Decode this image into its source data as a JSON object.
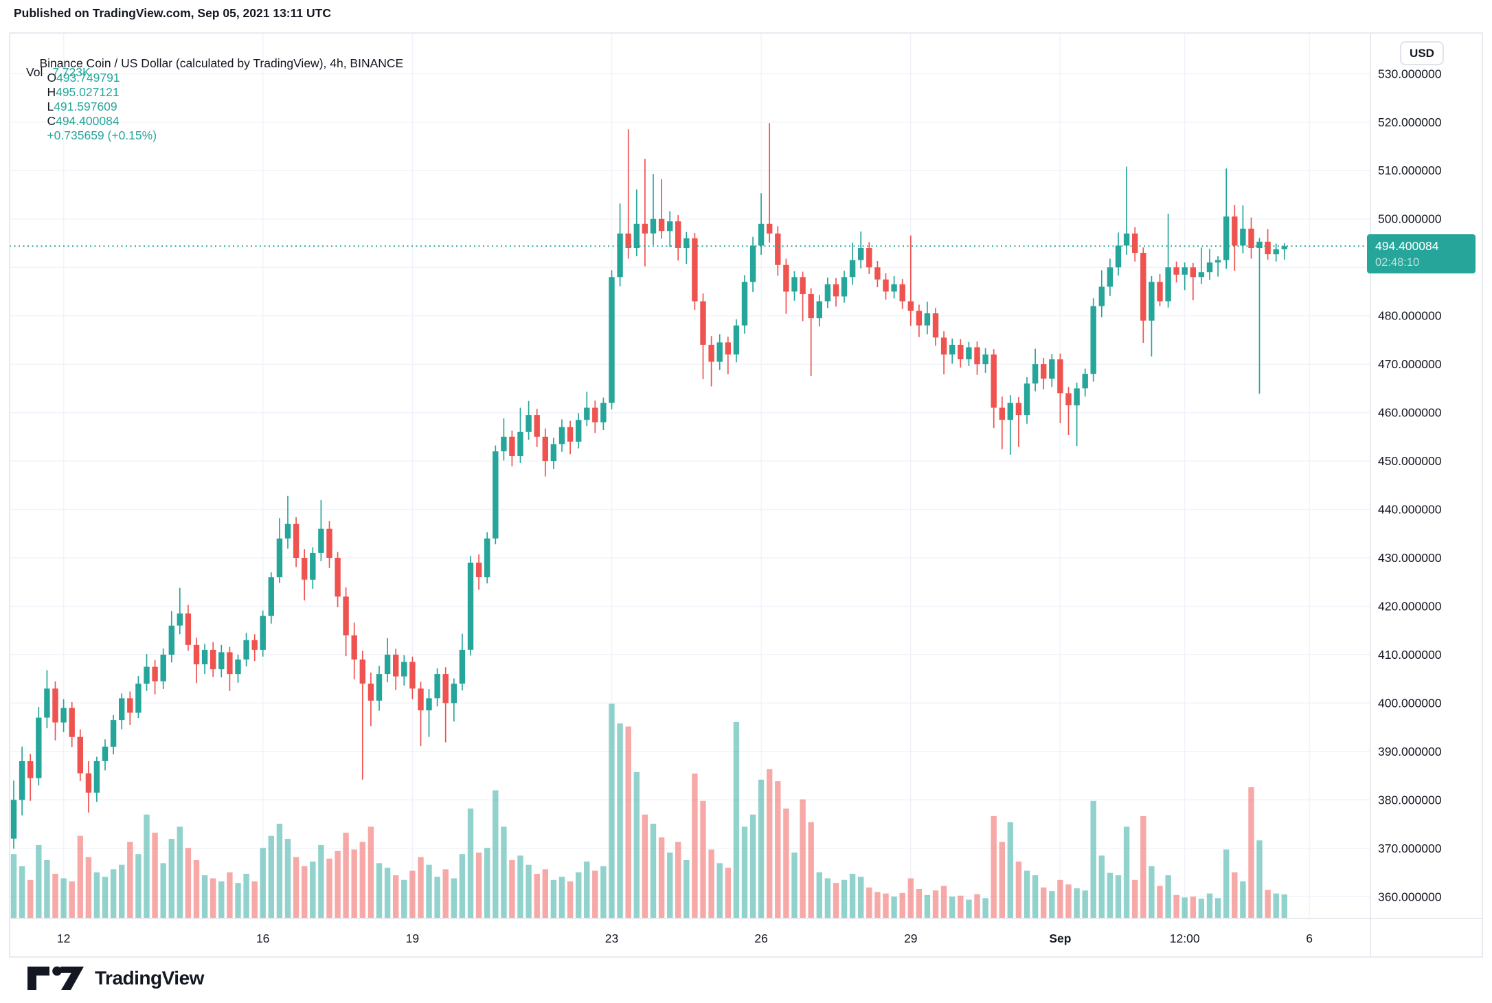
{
  "published_line": "Published on TradingView.com, Sep 05, 2021 13:11 UTC",
  "header": {
    "symbol_line": "Binance Coin / US Dollar (calculated by TradingView), 4h, BINANCE",
    "open_label": "O",
    "open": "493.749791",
    "high_label": "H",
    "high": "495.027121",
    "low_label": "L",
    "low": "491.597609",
    "close_label": "C",
    "close": "494.400084",
    "change": "+0.735659 (+0.15%)",
    "volume_label": "Vol",
    "volume": "7.723K"
  },
  "price_axis": {
    "currency_badge": "USD",
    "last_price_label": "494.400084",
    "countdown": "02:48:10"
  },
  "footer": {
    "brand": "TradingView"
  },
  "colors": {
    "up": "#26a69a",
    "down": "#ef5350",
    "vol_up": "rgba(38,166,154,0.5)",
    "vol_down": "rgba(239,83,80,0.5)",
    "accent": "#26a69a",
    "text": "#131722",
    "grid": "#f0f3fa",
    "frame": "#e0e3eb"
  },
  "chart_data": {
    "type": "candlestick",
    "title": "Binance Coin / US Dollar (calculated by TradingView), 4h, BINANCE",
    "symbol": "Binance Coin / US Dollar",
    "exchange": "BINANCE",
    "interval": "4h",
    "start_time": "2021-08-11 00:00 UTC",
    "end_time": "2021-09-05 12:00 UTC (current bar, closes in 02:48:10)",
    "price_line": 494.400084,
    "volume_series_name": "Vol",
    "legend_position": "top-left",
    "grid": true,
    "y_axis": {
      "ticks": [
        530,
        520,
        510,
        500,
        490,
        480,
        470,
        460,
        450,
        440,
        430,
        420,
        410,
        400,
        390,
        380,
        370,
        360
      ],
      "label_decimals": 6,
      "ylim": [
        355.5,
        538.5
      ]
    },
    "x_ticks": [
      {
        "index": 6,
        "label": "12"
      },
      {
        "index": 30,
        "label": "16"
      },
      {
        "index": 48,
        "label": "19"
      },
      {
        "index": 72,
        "label": "23"
      },
      {
        "index": 90,
        "label": "26"
      },
      {
        "index": 108,
        "label": "29"
      },
      {
        "index": 126,
        "label": "Sep",
        "bold": true
      },
      {
        "index": 141,
        "label": "12:00"
      },
      {
        "index": 156,
        "label": "6"
      }
    ],
    "candles_format": [
      "open",
      "high",
      "low",
      "close",
      "volume_K"
    ],
    "candles": [
      [
        372.0,
        384.0,
        369.9,
        380.0,
        21
      ],
      [
        380.0,
        391.0,
        376.8,
        388.0,
        17
      ],
      [
        388.0,
        389.5,
        379.8,
        384.5,
        12.5
      ],
      [
        384.5,
        399.2,
        383.0,
        397.0,
        24
      ],
      [
        397.0,
        406.8,
        394.8,
        403.0,
        19
      ],
      [
        403.0,
        404.5,
        392.3,
        396.0,
        14.5
      ],
      [
        396.0,
        400.8,
        394.0,
        399.0,
        13
      ],
      [
        399.0,
        400.2,
        390.9,
        393.0,
        12
      ],
      [
        393.0,
        394.6,
        383.9,
        385.5,
        27
      ],
      [
        385.5,
        388.0,
        377.4,
        381.5,
        20
      ],
      [
        381.5,
        388.9,
        379.6,
        388.0,
        15
      ],
      [
        388.0,
        392.5,
        386.1,
        391.0,
        13.5
      ],
      [
        391.0,
        397.5,
        389.4,
        396.5,
        16
      ],
      [
        396.5,
        402.0,
        394.6,
        401.0,
        17.5
      ],
      [
        401.0,
        402.4,
        395.5,
        398.0,
        25
      ],
      [
        398.0,
        405.6,
        396.9,
        404.0,
        21
      ],
      [
        404.0,
        410.1,
        402.5,
        407.5,
        34
      ],
      [
        407.5,
        408.9,
        401.8,
        404.5,
        28
      ],
      [
        404.5,
        411.3,
        402.9,
        410.0,
        18
      ],
      [
        410.0,
        419.0,
        408.4,
        416.0,
        26
      ],
      [
        416.0,
        423.8,
        414.2,
        418.5,
        30
      ],
      [
        418.5,
        420.3,
        410.8,
        412.0,
        23
      ],
      [
        412.0,
        413.5,
        404.1,
        408.0,
        19
      ],
      [
        408.0,
        412.2,
        406.0,
        411.0,
        14
      ],
      [
        411.0,
        412.6,
        405.4,
        407.0,
        13
      ],
      [
        407.0,
        412.0,
        405.3,
        410.5,
        12
      ],
      [
        410.5,
        411.6,
        402.5,
        406.0,
        15
      ],
      [
        406.0,
        410.0,
        404.2,
        409.0,
        11.5
      ],
      [
        409.0,
        414.5,
        407.6,
        413.0,
        14.5
      ],
      [
        413.0,
        414.2,
        408.7,
        411.0,
        12
      ],
      [
        411.0,
        419.1,
        409.6,
        418.0,
        23
      ],
      [
        418.0,
        427.0,
        416.4,
        426.0,
        27
      ],
      [
        426.0,
        438.2,
        424.8,
        434.0,
        31
      ],
      [
        434.0,
        442.8,
        431.9,
        437.0,
        26
      ],
      [
        437.0,
        438.4,
        428.1,
        430.0,
        20
      ],
      [
        430.0,
        431.8,
        421.2,
        425.5,
        17
      ],
      [
        425.5,
        432.2,
        423.6,
        431.0,
        18.5
      ],
      [
        431.0,
        441.9,
        429.3,
        436.0,
        24
      ],
      [
        436.0,
        437.6,
        427.9,
        430.0,
        19.5
      ],
      [
        430.0,
        431.2,
        419.8,
        422.0,
        22
      ],
      [
        422.0,
        423.9,
        409.7,
        414.0,
        28
      ],
      [
        414.0,
        416.6,
        404.9,
        409.0,
        22.5
      ],
      [
        409.0,
        410.8,
        384.2,
        404.0,
        25
      ],
      [
        404.0,
        406.3,
        395.2,
        400.5,
        30
      ],
      [
        400.5,
        407.7,
        398.4,
        406.0,
        18
      ],
      [
        406.0,
        413.4,
        404.3,
        410.0,
        16.5
      ],
      [
        410.0,
        411.2,
        402.7,
        405.5,
        14
      ],
      [
        405.5,
        409.9,
        403.6,
        408.5,
        12.5
      ],
      [
        408.5,
        409.6,
        400.8,
        403.0,
        15.5
      ],
      [
        403.0,
        404.4,
        391.1,
        398.5,
        20
      ],
      [
        398.5,
        402.9,
        393.0,
        401.0,
        17.5
      ],
      [
        401.0,
        407.2,
        399.3,
        406.0,
        13.5
      ],
      [
        406.0,
        407.4,
        391.9,
        400.0,
        16
      ],
      [
        400.0,
        405.1,
        396.2,
        404.0,
        13
      ],
      [
        404.0,
        414.3,
        402.6,
        411.0,
        21
      ],
      [
        411.0,
        430.4,
        409.8,
        429.0,
        36
      ],
      [
        429.0,
        430.7,
        423.4,
        426.0,
        21.5
      ],
      [
        426.0,
        435.3,
        424.7,
        434.0,
        23
      ],
      [
        434.0,
        453.2,
        432.8,
        452.0,
        42
      ],
      [
        452.0,
        458.8,
        450.1,
        455.0,
        30
      ],
      [
        455.0,
        456.3,
        448.9,
        451.0,
        19
      ],
      [
        451.0,
        461.0,
        449.6,
        456.0,
        20.5
      ],
      [
        456.0,
        462.4,
        454.4,
        459.5,
        17.5
      ],
      [
        459.5,
        460.8,
        452.9,
        455.0,
        14.5
      ],
      [
        455.0,
        456.7,
        446.8,
        450.0,
        16
      ],
      [
        450.0,
        454.8,
        448.3,
        453.5,
        12.5
      ],
      [
        453.5,
        458.6,
        451.9,
        457.0,
        13.5
      ],
      [
        457.0,
        458.3,
        451.4,
        454.0,
        12
      ],
      [
        454.0,
        459.9,
        452.6,
        458.5,
        15
      ],
      [
        458.5,
        464.3,
        457.2,
        461.0,
        18.5
      ],
      [
        461.0,
        462.5,
        455.8,
        458.0,
        15.5
      ],
      [
        458.0,
        463.1,
        456.4,
        462.0,
        17
      ],
      [
        462.0,
        489.4,
        460.7,
        488.0,
        70.5
      ],
      [
        488.0,
        503.2,
        486.1,
        497.0,
        64
      ],
      [
        497.0,
        518.5,
        491.8,
        494.0,
        63
      ],
      [
        494.0,
        506.1,
        492.3,
        499.0,
        48
      ],
      [
        499.0,
        512.4,
        490.2,
        497.0,
        34
      ],
      [
        497.0,
        509.3,
        494.6,
        500.0,
        31
      ],
      [
        500.0,
        508.2,
        495.9,
        497.5,
        26.5
      ],
      [
        497.5,
        501.6,
        494.2,
        499.5,
        21.5
      ],
      [
        499.5,
        500.8,
        491.4,
        494.0,
        25
      ],
      [
        494.0,
        497.3,
        490.7,
        496.0,
        19
      ],
      [
        496.0,
        497.1,
        481.2,
        483.0,
        47.5
      ],
      [
        483.0,
        484.6,
        466.9,
        474.0,
        38.5
      ],
      [
        474.0,
        475.8,
        465.4,
        470.5,
        22.5
      ],
      [
        470.5,
        476.2,
        468.8,
        474.5,
        18
      ],
      [
        474.5,
        475.7,
        467.9,
        472.0,
        16.5
      ],
      [
        472.0,
        479.3,
        470.4,
        478.0,
        64.5
      ],
      [
        478.0,
        488.4,
        476.3,
        487.0,
        30
      ],
      [
        487.0,
        496.3,
        484.9,
        494.5,
        34
      ],
      [
        494.5,
        505.3,
        492.6,
        499.0,
        45.5
      ],
      [
        499.0,
        519.8,
        495.1,
        497.0,
        49
      ],
      [
        497.0,
        498.5,
        488.3,
        490.5,
        45
      ],
      [
        490.5,
        491.8,
        480.4,
        485.0,
        36
      ],
      [
        485.0,
        489.2,
        483.1,
        488.0,
        21.5
      ],
      [
        488.0,
        489.1,
        478.9,
        484.5,
        39
      ],
      [
        484.5,
        485.7,
        467.6,
        479.5,
        31.5
      ],
      [
        479.5,
        484.3,
        477.8,
        483.0,
        15
      ],
      [
        483.0,
        487.9,
        481.6,
        486.5,
        13
      ],
      [
        486.5,
        487.8,
        481.9,
        484.0,
        11.5
      ],
      [
        484.0,
        489.3,
        482.7,
        488.0,
        12.5
      ],
      [
        488.0,
        495.1,
        486.4,
        491.5,
        14.5
      ],
      [
        491.5,
        497.4,
        489.8,
        494.0,
        13.5
      ],
      [
        494.0,
        495.2,
        488.6,
        490.0,
        10
      ],
      [
        490.0,
        491.3,
        485.9,
        487.5,
        8.5
      ],
      [
        487.5,
        488.8,
        483.3,
        485.0,
        8
      ],
      [
        485.0,
        488.2,
        483.6,
        486.5,
        7
      ],
      [
        486.5,
        487.6,
        481.4,
        483.0,
        8.2
      ],
      [
        483.0,
        496.6,
        477.9,
        481.0,
        13
      ],
      [
        481.0,
        482.3,
        475.6,
        478.0,
        9.5
      ],
      [
        478.0,
        482.9,
        476.2,
        480.5,
        7.5
      ],
      [
        480.5,
        481.6,
        473.8,
        475.5,
        9
      ],
      [
        475.5,
        476.8,
        467.9,
        472.0,
        10.5
      ],
      [
        472.0,
        475.3,
        470.1,
        474.0,
        7
      ],
      [
        474.0,
        475.2,
        469.3,
        471.0,
        7.3
      ],
      [
        471.0,
        474.6,
        469.6,
        473.5,
        6
      ],
      [
        473.5,
        474.7,
        467.8,
        470.0,
        7.8
      ],
      [
        470.0,
        473.3,
        468.2,
        472.0,
        6.5
      ],
      [
        472.0,
        473.1,
        456.8,
        461.0,
        33.5
      ],
      [
        461.0,
        463.3,
        452.4,
        458.5,
        25
      ],
      [
        458.5,
        463.6,
        451.3,
        462.0,
        31.5
      ],
      [
        462.0,
        463.2,
        452.9,
        459.5,
        18.5
      ],
      [
        459.5,
        467.3,
        457.7,
        466.0,
        15.5
      ],
      [
        466.0,
        473.2,
        464.4,
        470.0,
        14
      ],
      [
        470.0,
        471.3,
        464.8,
        467.0,
        10
      ],
      [
        467.0,
        472.1,
        465.3,
        471.0,
        8.8
      ],
      [
        471.0,
        472.2,
        457.8,
        464.0,
        12.5
      ],
      [
        464.0,
        465.3,
        455.4,
        461.5,
        11
      ],
      [
        461.5,
        466.2,
        453.1,
        465.0,
        9.7
      ],
      [
        465.0,
        469.1,
        463.3,
        468.0,
        9
      ],
      [
        468.0,
        483.6,
        466.4,
        482.0,
        38.5
      ],
      [
        482.0,
        489.4,
        479.7,
        486.0,
        20.5
      ],
      [
        486.0,
        491.8,
        484.1,
        490.0,
        14.8
      ],
      [
        490.0,
        497.2,
        488.3,
        494.5,
        14
      ],
      [
        494.5,
        510.8,
        492.6,
        497.0,
        30
      ],
      [
        497.0,
        498.3,
        491.2,
        493.0,
        12.5
      ],
      [
        493.0,
        494.1,
        474.4,
        479.0,
        33.5
      ],
      [
        479.0,
        488.2,
        471.6,
        487.0,
        17
      ],
      [
        487.0,
        488.6,
        482.0,
        483.0,
        10.5
      ],
      [
        483.0,
        501.1,
        481.7,
        490.0,
        14
      ],
      [
        490.0,
        491.2,
        486.9,
        488.5,
        7.5
      ],
      [
        488.5,
        491.0,
        485.3,
        490.0,
        6.7
      ],
      [
        490.0,
        490.9,
        483.2,
        488.0,
        7
      ],
      [
        488.0,
        494.1,
        486.6,
        489.0,
        6.3
      ],
      [
        489.0,
        493.8,
        487.4,
        491.0,
        8
      ],
      [
        491.0,
        492.3,
        488.1,
        491.5,
        6.5
      ],
      [
        491.5,
        510.4,
        489.7,
        500.5,
        22.5
      ],
      [
        500.5,
        502.9,
        489.3,
        494.5,
        15
      ],
      [
        494.5,
        502.8,
        492.9,
        498.0,
        12
      ],
      [
        498.0,
        500.3,
        491.8,
        494.0,
        43
      ],
      [
        494.0,
        496.1,
        463.9,
        495.3,
        25.5
      ],
      [
        495.3,
        497.9,
        491.6,
        492.7,
        9.2
      ],
      [
        492.7,
        494.9,
        491.2,
        493.749791,
        8
      ],
      [
        493.749791,
        495.027121,
        491.597609,
        494.400084,
        7.723
      ]
    ]
  }
}
